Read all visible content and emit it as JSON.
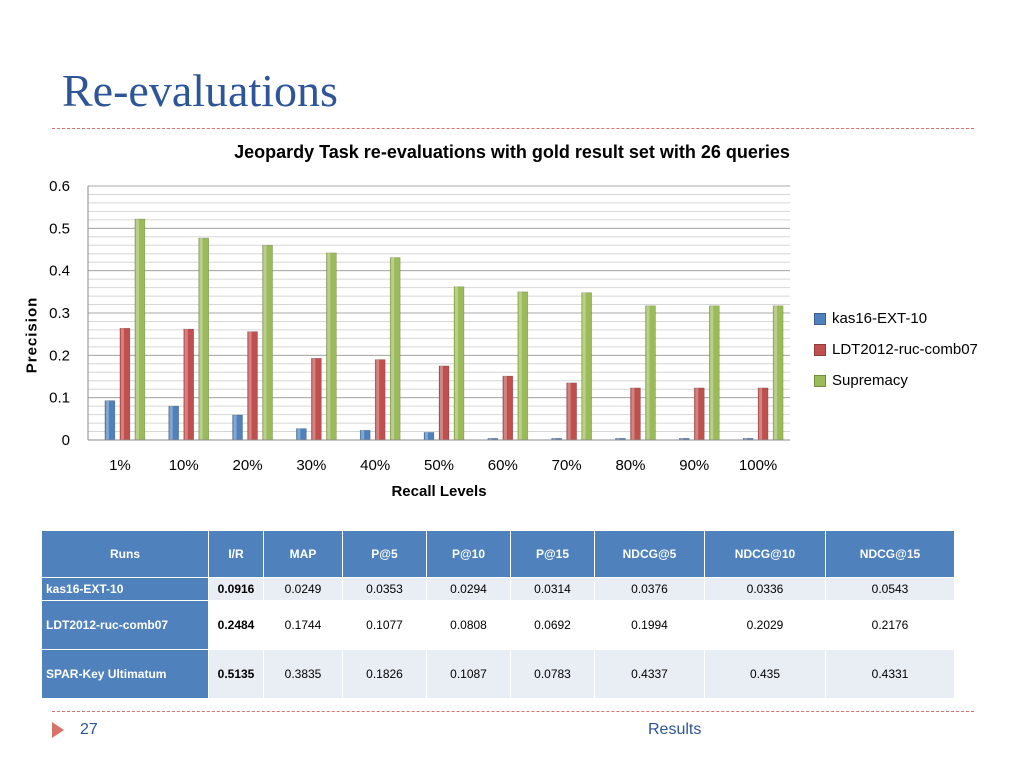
{
  "slide": {
    "title": "Re-evaluations",
    "page_number": "27",
    "section": "Results",
    "accent_color": "#d9736a",
    "title_color": "#2e5597"
  },
  "chart_data": {
    "type": "bar",
    "title": "Jeopardy Task re-evaluations  with gold result set with 26 queries",
    "xlabel": "Recall Levels",
    "ylabel": "Precision",
    "ylim": [
      0,
      0.6
    ],
    "yticks": [
      "0",
      "0.1",
      "0.2",
      "0.3",
      "0.4",
      "0.5",
      "0.6"
    ],
    "categories": [
      "1%",
      "10%",
      "20%",
      "30%",
      "40%",
      "50%",
      "60%",
      "70%",
      "80%",
      "90%",
      "100%"
    ],
    "grid": true,
    "legend_position": "right",
    "series": [
      {
        "name": "kas16-EXT-10",
        "color": "#4f81bd",
        "values": [
          0.093,
          0.08,
          0.059,
          0.027,
          0.023,
          0.018,
          0.004,
          0.004,
          0.004,
          0.004,
          0.004
        ]
      },
      {
        "name": "LDT2012-ruc-comb07",
        "color": "#c0504d",
        "values": [
          0.264,
          0.262,
          0.256,
          0.193,
          0.19,
          0.175,
          0.151,
          0.135,
          0.123,
          0.123,
          0.123
        ]
      },
      {
        "name": "Supremacy",
        "color": "#9bbb59",
        "values": [
          0.522,
          0.477,
          0.46,
          0.442,
          0.431,
          0.362,
          0.35,
          0.348,
          0.317,
          0.317,
          0.317
        ]
      }
    ]
  },
  "table": {
    "headers": [
      "Runs",
      "I/R",
      "MAP",
      "P@5",
      "P@10",
      "P@15",
      "NDCG@5",
      "NDCG@10",
      "NDCG@15"
    ],
    "rows": [
      [
        "kas16-EXT-10",
        "0.0916",
        "0.0249",
        "0.0353",
        "0.0294",
        "0.0314",
        "0.0376",
        "0.0336",
        "0.0543"
      ],
      [
        "LDT2012-ruc-comb07",
        "0.2484",
        "0.1744",
        "0.1077",
        "0.0808",
        "0.0692",
        "0.1994",
        "0.2029",
        "0.2176"
      ],
      [
        "SPAR-Key Ultimatum",
        "0.5135",
        "0.3835",
        "0.1826",
        "0.1087",
        "0.0783",
        "0.4337",
        "0.435",
        "0.4331"
      ]
    ]
  }
}
